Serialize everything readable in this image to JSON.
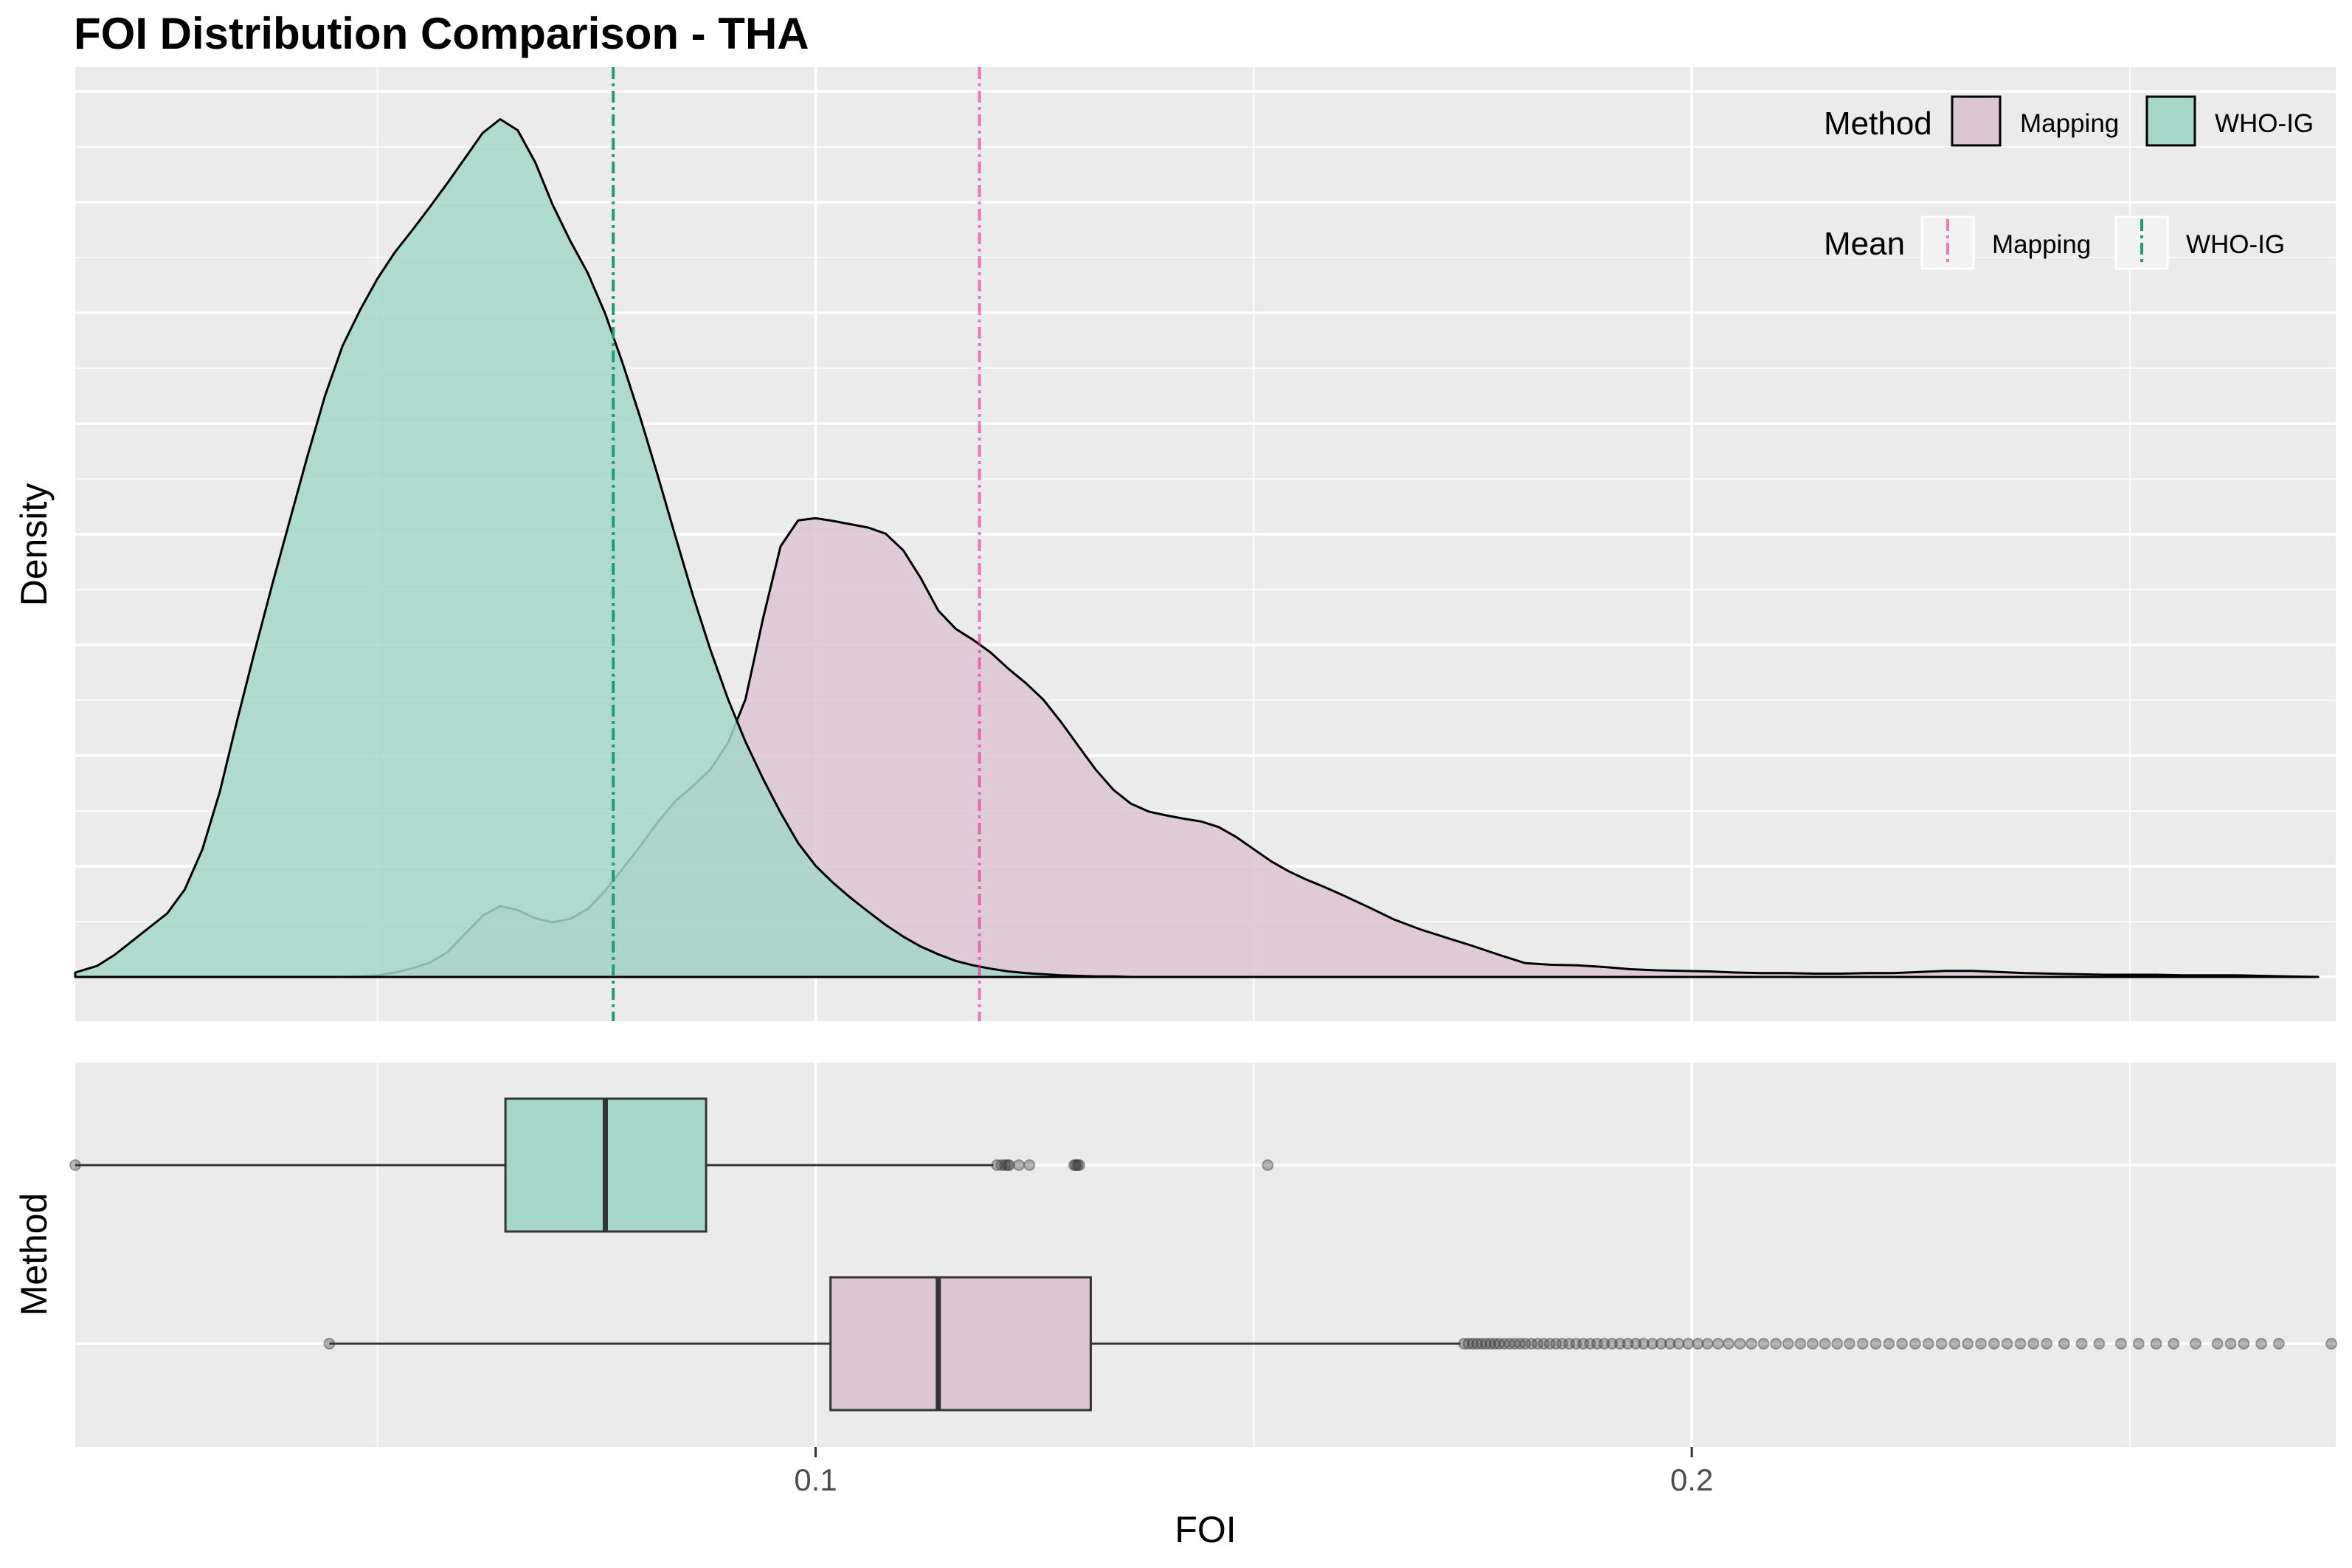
{
  "chart_data": [
    {
      "type": "area",
      "title": "FOI Distribution Comparison - THA",
      "xlabel": "",
      "ylabel": "Density",
      "xlim": [
        0.0155,
        0.2735
      ],
      "x_ticks": [
        0.1,
        0.2
      ],
      "grid": true,
      "legend_placement": "top-right",
      "series": [
        {
          "name": "Mapping",
          "color": "#e7298a",
          "fill": "#ddc6d4",
          "x": [
            0.046,
            0.048,
            0.05,
            0.052,
            0.054,
            0.056,
            0.058,
            0.06,
            0.062,
            0.064,
            0.066,
            0.068,
            0.07,
            0.072,
            0.074,
            0.076,
            0.078,
            0.08,
            0.082,
            0.084,
            0.086,
            0.088,
            0.09,
            0.092,
            0.094,
            0.096,
            0.098,
            0.1,
            0.102,
            0.104,
            0.106,
            0.108,
            0.11,
            0.112,
            0.114,
            0.116,
            0.118,
            0.12,
            0.122,
            0.124,
            0.126,
            0.128,
            0.13,
            0.132,
            0.134,
            0.136,
            0.138,
            0.14,
            0.142,
            0.144,
            0.146,
            0.148,
            0.15,
            0.152,
            0.154,
            0.156,
            0.158,
            0.16,
            0.163,
            0.166,
            0.169,
            0.172,
            0.175,
            0.178,
            0.181,
            0.184,
            0.187,
            0.19,
            0.193,
            0.196,
            0.199,
            0.202,
            0.205,
            0.208,
            0.211,
            0.214,
            0.217,
            0.22,
            0.223,
            0.226,
            0.229,
            0.232,
            0.235,
            0.238,
            0.241,
            0.244,
            0.247,
            0.25,
            0.253,
            0.256,
            0.259,
            0.262,
            0.265,
            0.268,
            0.2715
          ],
          "y": [
            0.0,
            0.001,
            0.003,
            0.008,
            0.016,
            0.026,
            0.045,
            0.078,
            0.111,
            0.128,
            0.121,
            0.106,
            0.099,
            0.105,
            0.123,
            0.156,
            0.196,
            0.237,
            0.28,
            0.318,
            0.345,
            0.375,
            0.423,
            0.502,
            0.648,
            0.778,
            0.825,
            0.829,
            0.824,
            0.818,
            0.812,
            0.801,
            0.771,
            0.721,
            0.662,
            0.629,
            0.609,
            0.586,
            0.557,
            0.531,
            0.501,
            0.461,
            0.417,
            0.374,
            0.338,
            0.313,
            0.299,
            0.292,
            0.286,
            0.281,
            0.271,
            0.253,
            0.231,
            0.209,
            0.191,
            0.176,
            0.163,
            0.149,
            0.127,
            0.104,
            0.086,
            0.071,
            0.056,
            0.04,
            0.025,
            0.022,
            0.021,
            0.018,
            0.014,
            0.012,
            0.011,
            0.01,
            0.008,
            0.007,
            0.007,
            0.006,
            0.006,
            0.007,
            0.007,
            0.009,
            0.011,
            0.011,
            0.009,
            0.007,
            0.006,
            0.005,
            0.004,
            0.004,
            0.004,
            0.003,
            0.003,
            0.003,
            0.002,
            0.001,
            0.0
          ]
        },
        {
          "name": "WHO-IG",
          "color": "#1b9e77",
          "fill": "#a5d7c9",
          "x": [
            0.0155,
            0.018,
            0.02,
            0.022,
            0.024,
            0.026,
            0.028,
            0.03,
            0.032,
            0.034,
            0.036,
            0.038,
            0.04,
            0.042,
            0.044,
            0.046,
            0.048,
            0.05,
            0.052,
            0.054,
            0.056,
            0.058,
            0.06,
            0.062,
            0.064,
            0.066,
            0.068,
            0.07,
            0.072,
            0.074,
            0.076,
            0.078,
            0.08,
            0.082,
            0.084,
            0.086,
            0.088,
            0.09,
            0.092,
            0.094,
            0.096,
            0.098,
            0.1,
            0.102,
            0.104,
            0.106,
            0.108,
            0.11,
            0.112,
            0.114,
            0.116,
            0.118,
            0.12,
            0.122,
            0.124,
            0.126,
            0.128,
            0.13,
            0.132,
            0.134,
            0.136,
            0.138,
            0.14,
            0.143,
            0.146,
            0.149,
            0.152,
            0.155
          ],
          "y": [
            0.008,
            0.02,
            0.04,
            0.065,
            0.09,
            0.115,
            0.158,
            0.23,
            0.335,
            0.465,
            0.59,
            0.71,
            0.826,
            0.941,
            1.05,
            1.14,
            1.205,
            1.262,
            1.31,
            1.35,
            1.392,
            1.435,
            1.48,
            1.525,
            1.55,
            1.53,
            1.472,
            1.395,
            1.33,
            1.272,
            1.198,
            1.108,
            1.01,
            0.905,
            0.796,
            0.689,
            0.591,
            0.502,
            0.425,
            0.358,
            0.297,
            0.242,
            0.201,
            0.17,
            0.143,
            0.118,
            0.094,
            0.073,
            0.055,
            0.041,
            0.029,
            0.021,
            0.015,
            0.01,
            0.007,
            0.005,
            0.003,
            0.002,
            0.001,
            0.001,
            0.0,
            0.0,
            0.0,
            0.0,
            0.0,
            0.0,
            0.0,
            0.0
          ]
        }
      ],
      "means": [
        {
          "name": "Mapping",
          "x": 0.1187,
          "color": "#e7298a"
        },
        {
          "name": "WHO-IG",
          "x": 0.0769,
          "color": "#1b9e77"
        }
      ],
      "legend": {
        "method_title": "Method",
        "method_items": [
          "Mapping",
          "WHO-IG"
        ],
        "mean_title": "Mean",
        "mean_items": [
          "Mapping",
          "WHO-IG"
        ]
      }
    },
    {
      "type": "box",
      "xlabel": "FOI",
      "ylabel": "Method",
      "xlim": [
        0.0155,
        0.2735
      ],
      "x_ticks": [
        0.1,
        0.2
      ],
      "x_tick_labels": [
        "0.1",
        "0.2"
      ],
      "series": [
        {
          "name": "WHO-IG",
          "fill": "#a5d7c9",
          "min": 0.0155,
          "q1": 0.0646,
          "median": 0.076,
          "q3": 0.0875,
          "whisker_high": 0.1203,
          "outliers": [
            0.1207,
            0.1212,
            0.1216,
            0.1219,
            0.1221,
            0.1232,
            0.1244,
            0.1295,
            0.1297,
            0.1299,
            0.1301,
            0.1516
          ]
        },
        {
          "name": "Mapping",
          "fill": "#ddc6d4",
          "min": 0.0445,
          "q1": 0.1017,
          "median": 0.114,
          "q3": 0.1314,
          "whisker_high": 0.1736,
          "outliers": [
            0.174,
            0.1745,
            0.175,
            0.1755,
            0.176,
            0.1765,
            0.177,
            0.1775,
            0.178,
            0.1786,
            0.1792,
            0.1798,
            0.1804,
            0.181,
            0.1817,
            0.1824,
            0.1831,
            0.1838,
            0.1845,
            0.1852,
            0.186,
            0.1868,
            0.1876,
            0.1884,
            0.1892,
            0.19,
            0.1909,
            0.1918,
            0.1927,
            0.1936,
            0.1945,
            0.1955,
            0.1965,
            0.1975,
            0.1985,
            0.1996,
            0.2007,
            0.2018,
            0.203,
            0.2042,
            0.2055,
            0.2068,
            0.2082,
            0.2096,
            0.211,
            0.2124,
            0.2138,
            0.2152,
            0.2166,
            0.218,
            0.2195,
            0.221,
            0.2225,
            0.224,
            0.2255,
            0.227,
            0.2285,
            0.23,
            0.2315,
            0.233,
            0.2345,
            0.236,
            0.2375,
            0.239,
            0.2405,
            0.2425,
            0.2445,
            0.2465,
            0.249,
            0.251,
            0.253,
            0.255,
            0.2575,
            0.26,
            0.2615,
            0.263,
            0.265,
            0.267,
            0.273
          ]
        }
      ]
    }
  ]
}
